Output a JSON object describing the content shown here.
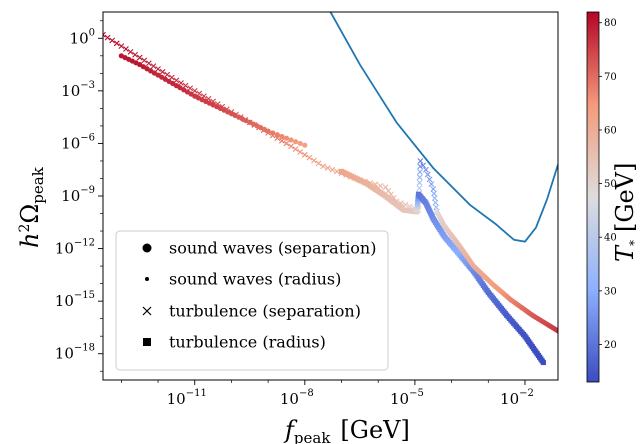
{
  "chart_data": {
    "type": "scatter",
    "x_scale": "log",
    "y_scale": "log",
    "xlim_exp": [
      -13.5,
      -1.1
    ],
    "ylim_exp": [
      -19.5,
      1.5
    ],
    "x_ticks": [
      {
        "exp": -11,
        "label": "10",
        "sup": "−11"
      },
      {
        "exp": -8,
        "label": "10",
        "sup": "−8"
      },
      {
        "exp": -5,
        "label": "10",
        "sup": "−5"
      },
      {
        "exp": -2,
        "label": "10",
        "sup": "−2"
      }
    ],
    "y_ticks": [
      {
        "exp": 0,
        "label": "10",
        "sup": "0"
      },
      {
        "exp": -3,
        "label": "10",
        "sup": "−3"
      },
      {
        "exp": -6,
        "label": "10",
        "sup": "−6"
      },
      {
        "exp": -9,
        "label": "10",
        "sup": "−9"
      },
      {
        "exp": -12,
        "label": "10",
        "sup": "−12"
      },
      {
        "exp": -15,
        "label": "10",
        "sup": "−15"
      },
      {
        "exp": -18,
        "label": "10",
        "sup": "−18"
      }
    ],
    "xlabel_main": "f",
    "xlabel_sub": "peak",
    "xlabel_unit": "[GeV]",
    "ylabel_h": "h",
    "ylabel_sup": "2",
    "ylabel_omega": "Ω",
    "ylabel_sub": "peak",
    "colorbar": {
      "label_main": "T",
      "label_sub": "*",
      "label_unit": "[GeV]",
      "min": 13,
      "max": 82,
      "ticks": [
        {
          "value": 20,
          "label": "20"
        },
        {
          "value": 30,
          "label": "30"
        },
        {
          "value": 40,
          "label": "40"
        },
        {
          "value": 50,
          "label": "50"
        },
        {
          "value": 60,
          "label": "60"
        },
        {
          "value": 70,
          "label": "70"
        },
        {
          "value": 80,
          "label": "80"
        }
      ]
    },
    "legend_position": "lower-left",
    "legend": [
      {
        "marker": "circle",
        "label": "sound waves (separation)"
      },
      {
        "marker": "dot",
        "label": "sound waves (radius)"
      },
      {
        "marker": "cross",
        "label": "turbulence (separation)"
      },
      {
        "marker": "square",
        "label": "turbulence (radius)"
      }
    ],
    "sensitivity_curve": {
      "color": "#1f77b4",
      "points": [
        [
          -7.3,
          1.5
        ],
        [
          -6.5,
          -1.5
        ],
        [
          -5.5,
          -4.8
        ],
        [
          -4.5,
          -7.4
        ],
        [
          -3.5,
          -9.5
        ],
        [
          -2.8,
          -10.6
        ],
        [
          -2.3,
          -11.5
        ],
        [
          -2.0,
          -11.6
        ],
        [
          -1.7,
          -10.8
        ],
        [
          -1.4,
          -9.2
        ],
        [
          -1.1,
          -7.2
        ]
      ]
    },
    "series": [
      {
        "marker": "cross",
        "points": [
          [
            -13.5,
            0.2,
            82
          ],
          [
            -12.5,
            -1.1,
            80
          ],
          [
            -11.5,
            -2.4,
            78
          ],
          [
            -10.5,
            -3.6,
            75
          ],
          [
            -9.5,
            -4.8,
            72
          ],
          [
            -8.5,
            -6.0,
            68
          ],
          [
            -7.5,
            -7.3,
            63
          ],
          [
            -6.5,
            -8.1,
            60
          ],
          [
            -5.8,
            -8.5,
            58
          ],
          [
            -5.5,
            -9.3,
            56
          ],
          [
            -4.9,
            -9.8,
            53
          ],
          [
            -4.85,
            -7.0,
            22
          ],
          [
            -4.7,
            -7.5,
            24
          ],
          [
            -4.5,
            -8.6,
            28
          ],
          [
            -4.4,
            -9.9,
            35
          ]
        ]
      },
      {
        "marker": "square",
        "points": [
          [
            -7.0,
            -7.6,
            62
          ],
          [
            -6.3,
            -8.3,
            59
          ],
          [
            -5.8,
            -9.0,
            56
          ],
          [
            -5.3,
            -9.8,
            54
          ],
          [
            -4.95,
            -9.9,
            52
          ],
          [
            -4.9,
            -8.9,
            20
          ],
          [
            -4.7,
            -9.4,
            22
          ],
          [
            -4.5,
            -10.3,
            24
          ],
          [
            -4.2,
            -11.3,
            27
          ],
          [
            -3.8,
            -12.3,
            30
          ],
          [
            -3.4,
            -13.3,
            24
          ],
          [
            -3.0,
            -14.5,
            19
          ],
          [
            -2.5,
            -15.8,
            16
          ],
          [
            -2.0,
            -17.0,
            14
          ],
          [
            -1.5,
            -18.5,
            13
          ]
        ]
      },
      {
        "marker": "circle",
        "points": [
          [
            -13.0,
            -1.0,
            80
          ],
          [
            -12.5,
            -1.5,
            80
          ],
          [
            -12.0,
            -2.1,
            78
          ],
          [
            -11.5,
            -2.7,
            78
          ],
          [
            -11.0,
            -3.3,
            76
          ],
          [
            -10.5,
            -3.8,
            75
          ],
          [
            -10.0,
            -4.3,
            73
          ],
          [
            -9.5,
            -4.8,
            71
          ],
          [
            -9.0,
            -5.3,
            69
          ],
          [
            -8.5,
            -5.7,
            66
          ],
          [
            -8.0,
            -6.1,
            63
          ]
        ]
      },
      {
        "marker": "dot",
        "points": [
          [
            -4.4,
            -9.9,
            48
          ],
          [
            -4.2,
            -10.7,
            52
          ],
          [
            -3.8,
            -11.8,
            56
          ],
          [
            -3.4,
            -13.0,
            60
          ],
          [
            -2.9,
            -14.0,
            63
          ],
          [
            -2.4,
            -14.9,
            67
          ],
          [
            -1.8,
            -15.8,
            72
          ],
          [
            -1.1,
            -16.7,
            76
          ]
        ]
      }
    ]
  }
}
